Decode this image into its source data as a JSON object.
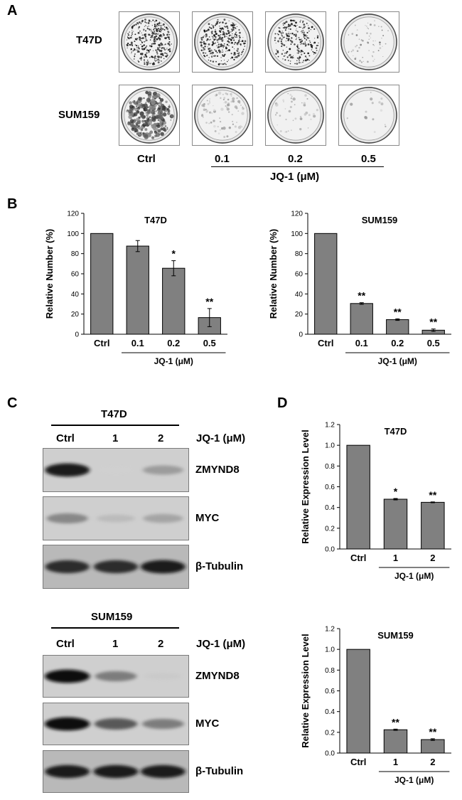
{
  "panels": {
    "A": "A",
    "B": "B",
    "C": "C",
    "D": "D"
  },
  "panelA": {
    "rows": [
      "T47D",
      "SUM159"
    ],
    "columns": [
      "Ctrl",
      "0.1",
      "0.2",
      "0.5"
    ],
    "treatment_label": "JQ-1 (μM)",
    "colony_density": {
      "T47D": [
        1.0,
        0.87,
        0.66,
        0.17
      ],
      "SUM159": [
        1.0,
        0.31,
        0.14,
        0.04
      ]
    }
  },
  "panelC": {
    "T47D": {
      "cell_line": "T47D",
      "lanes": [
        "Ctrl",
        "1",
        "2"
      ],
      "treatment_label": "JQ-1 (μM)",
      "proteins": [
        "ZMYND8",
        "MYC",
        "β-Tubulin"
      ],
      "band_intensity": {
        "ZMYND8": [
          0.95,
          0.05,
          0.45
        ],
        "MYC": [
          0.55,
          0.25,
          0.4
        ],
        "β-Tubulin": [
          0.9,
          0.9,
          0.95
        ]
      }
    },
    "SUM159": {
      "cell_line": "SUM159",
      "lanes": [
        "Ctrl",
        "1",
        "2"
      ],
      "treatment_label": "JQ-1 (μM)",
      "proteins": [
        "ZMYND8",
        "MYC",
        "β-Tubulin"
      ],
      "band_intensity": {
        "ZMYND8": [
          1.0,
          0.6,
          0.12
        ],
        "MYC": [
          1.0,
          0.75,
          0.6
        ],
        "β-Tubulin": [
          0.95,
          0.95,
          0.95
        ]
      }
    }
  },
  "colors": {
    "bar_fill": "#808080",
    "bar_stroke": "#000000"
  },
  "chart_data": [
    {
      "id": "B-T47D",
      "type": "bar",
      "title": "T47D",
      "ylabel": "Relative Number (%)",
      "xlabel": "JQ-1 (μM)",
      "categories": [
        "Ctrl",
        "0.1",
        "0.2",
        "0.5"
      ],
      "values": [
        100,
        87.5,
        65.5,
        16.5
      ],
      "errors": [
        0,
        5.5,
        7.5,
        9
      ],
      "annotations": [
        "",
        "",
        "*",
        "**"
      ],
      "ylim": [
        0,
        120
      ],
      "yticks": [
        "0",
        "20",
        "40",
        "60",
        "80",
        "100",
        "120"
      ],
      "ytick_values": [
        0,
        20,
        40,
        60,
        80,
        100,
        120
      ],
      "grid": false
    },
    {
      "id": "B-SUM159",
      "type": "bar",
      "title": "SUM159",
      "ylabel": "Relative Number (%)",
      "xlabel": "JQ-1 (μM)",
      "categories": [
        "Ctrl",
        "0.1",
        "0.2",
        "0.5"
      ],
      "values": [
        100,
        30.5,
        14.5,
        4
      ],
      "errors": [
        0,
        0.8,
        0.8,
        1.2
      ],
      "annotations": [
        "",
        "**",
        "**",
        "**"
      ],
      "ylim": [
        0,
        120
      ],
      "yticks": [
        "0",
        "20",
        "40",
        "60",
        "80",
        "100",
        "120"
      ],
      "ytick_values": [
        0,
        20,
        40,
        60,
        80,
        100,
        120
      ],
      "grid": false
    },
    {
      "id": "D-T47D",
      "type": "bar",
      "title": "T47D",
      "ylabel": "Relative Expression Level",
      "xlabel": "JQ-1 (μM)",
      "categories": [
        "Ctrl",
        "1",
        "2"
      ],
      "values": [
        1.0,
        0.48,
        0.45
      ],
      "errors": [
        0,
        0.007,
        0.004
      ],
      "annotations": [
        "",
        "*",
        "**"
      ],
      "ylim": [
        0,
        1.2
      ],
      "yticks": [
        "0.0",
        "0.2",
        "0.4",
        "0.6",
        "0.8",
        "1.0",
        "1.2"
      ],
      "ytick_values": [
        0,
        0.2,
        0.4,
        0.6,
        0.8,
        1.0,
        1.2
      ],
      "grid": false
    },
    {
      "id": "D-SUM159",
      "type": "bar",
      "title": "SUM159",
      "ylabel": "Relative Expression Level",
      "xlabel": "JQ-1 (μM)",
      "categories": [
        "Ctrl",
        "1",
        "2"
      ],
      "values": [
        1.0,
        0.225,
        0.13
      ],
      "errors": [
        0,
        0.006,
        0.008
      ],
      "annotations": [
        "",
        "**",
        "**"
      ],
      "ylim": [
        0,
        1.2
      ],
      "yticks": [
        "0.0",
        "0.2",
        "0.4",
        "0.6",
        "0.8",
        "1.0",
        "1.2"
      ],
      "ytick_values": [
        0,
        0.2,
        0.4,
        0.6,
        0.8,
        1.0,
        1.2
      ],
      "grid": false
    }
  ]
}
